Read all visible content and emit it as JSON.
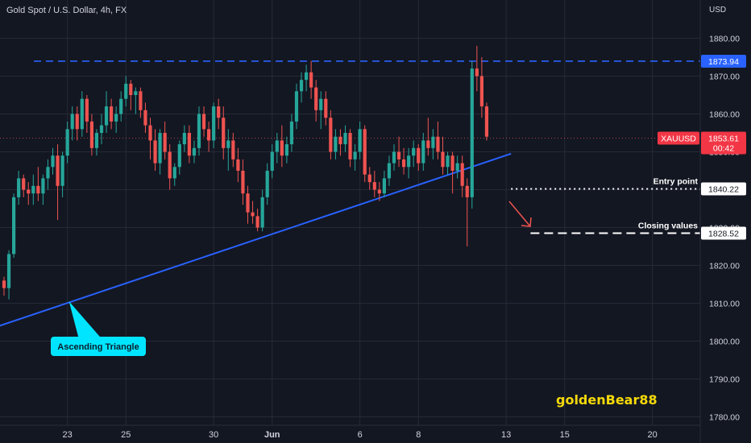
{
  "header": {
    "symbol_title": "Gold Spot / U.S. Dollar, 4h, FX"
  },
  "watermark": "goldenBear88",
  "colors": {
    "background": "#131722",
    "grid": "#252a36",
    "axis_text": "#d1d4dc",
    "up": "#26a69a",
    "down": "#ef5350",
    "trendline": "#2962ff",
    "resistance": "#2962ff",
    "price_tag": "#f23645",
    "annotation_bg": "#00e5ff",
    "watermark": "#f5d90a"
  },
  "chart_data": {
    "type": "candlestick",
    "title": "Gold Spot / U.S. Dollar, 4h, FX",
    "xlabel": "",
    "ylabel": "USD",
    "ylim": [
      1776,
      1889
    ],
    "y_ticks": [
      1780,
      1790,
      1800,
      1810,
      1820,
      1830,
      1840,
      1850,
      1860,
      1870,
      1880
    ],
    "x_ticks": [
      {
        "label": "23",
        "slot": 13
      },
      {
        "label": "25",
        "slot": 25
      },
      {
        "label": "30",
        "slot": 43
      },
      {
        "label": "Jun",
        "slot": 55
      },
      {
        "label": "6",
        "slot": 73
      },
      {
        "label": "8",
        "slot": 85
      },
      {
        "label": "13",
        "slot": 103
      },
      {
        "label": "15",
        "slot": 115
      },
      {
        "label": "20",
        "slot": 133
      }
    ],
    "candles": [
      [
        1816,
        1817,
        1812,
        1814
      ],
      [
        1814,
        1824,
        1811,
        1823
      ],
      [
        1823,
        1839,
        1822,
        1838
      ],
      [
        1838,
        1845,
        1836,
        1843
      ],
      [
        1843,
        1844,
        1838,
        1840
      ],
      [
        1840,
        1842,
        1836,
        1839
      ],
      [
        1839,
        1844,
        1836,
        1841
      ],
      [
        1841,
        1846,
        1837,
        1839
      ],
      [
        1839,
        1844,
        1836,
        1843
      ],
      [
        1843,
        1848,
        1840,
        1846
      ],
      [
        1846,
        1851,
        1844,
        1849
      ],
      [
        1849,
        1852,
        1832,
        1841
      ],
      [
        1841,
        1850,
        1838,
        1849
      ],
      [
        1849,
        1858,
        1847,
        1856
      ],
      [
        1856,
        1862,
        1853,
        1860
      ],
      [
        1860,
        1862,
        1853,
        1856
      ],
      [
        1856,
        1866,
        1854,
        1864
      ],
      [
        1864,
        1865,
        1855,
        1858
      ],
      [
        1858,
        1860,
        1849,
        1851
      ],
      [
        1851,
        1856,
        1849,
        1855
      ],
      [
        1855,
        1860,
        1852,
        1857
      ],
      [
        1857,
        1866,
        1855,
        1862
      ],
      [
        1862,
        1864,
        1856,
        1858
      ],
      [
        1858,
        1862,
        1855,
        1860
      ],
      [
        1860,
        1866,
        1858,
        1864
      ],
      [
        1864,
        1870,
        1862,
        1868
      ],
      [
        1868,
        1869,
        1861,
        1865
      ],
      [
        1865,
        1867,
        1860,
        1866
      ],
      [
        1866,
        1867,
        1859,
        1861
      ],
      [
        1861,
        1863,
        1855,
        1857
      ],
      [
        1857,
        1859,
        1848,
        1853
      ],
      [
        1853,
        1856,
        1845,
        1847
      ],
      [
        1847,
        1856,
        1844,
        1855
      ],
      [
        1855,
        1858,
        1848,
        1850
      ],
      [
        1850,
        1852,
        1840,
        1843
      ],
      [
        1843,
        1847,
        1841,
        1846
      ],
      [
        1846,
        1853,
        1844,
        1852
      ],
      [
        1852,
        1857,
        1850,
        1855
      ],
      [
        1855,
        1857,
        1847,
        1849
      ],
      [
        1849,
        1853,
        1847,
        1851
      ],
      [
        1851,
        1862,
        1849,
        1860
      ],
      [
        1860,
        1862,
        1854,
        1856
      ],
      [
        1856,
        1858,
        1850,
        1853
      ],
      [
        1853,
        1863,
        1851,
        1862
      ],
      [
        1862,
        1864,
        1856,
        1859
      ],
      [
        1859,
        1862,
        1848,
        1851
      ],
      [
        1851,
        1856,
        1845,
        1853
      ],
      [
        1853,
        1855,
        1846,
        1848
      ],
      [
        1848,
        1851,
        1842,
        1845
      ],
      [
        1845,
        1848,
        1836,
        1839
      ],
      [
        1839,
        1841,
        1831,
        1834
      ],
      [
        1834,
        1837,
        1831,
        1833
      ],
      [
        1833,
        1835,
        1829,
        1830
      ],
      [
        1830,
        1840,
        1829,
        1838
      ],
      [
        1838,
        1847,
        1836,
        1845
      ],
      [
        1845,
        1852,
        1843,
        1850
      ],
      [
        1850,
        1855,
        1847,
        1853
      ],
      [
        1853,
        1857,
        1846,
        1849
      ],
      [
        1849,
        1854,
        1847,
        1852
      ],
      [
        1852,
        1860,
        1850,
        1858
      ],
      [
        1858,
        1868,
        1856,
        1866
      ],
      [
        1866,
        1871,
        1863,
        1869
      ],
      [
        1869,
        1873,
        1866,
        1871
      ],
      [
        1871,
        1874,
        1864,
        1867
      ],
      [
        1867,
        1869,
        1858,
        1861
      ],
      [
        1861,
        1866,
        1856,
        1864
      ],
      [
        1864,
        1866,
        1857,
        1859
      ],
      [
        1859,
        1861,
        1848,
        1850
      ],
      [
        1850,
        1856,
        1848,
        1854
      ],
      [
        1854,
        1856,
        1849,
        1852
      ],
      [
        1852,
        1857,
        1850,
        1855
      ],
      [
        1855,
        1856,
        1846,
        1848
      ],
      [
        1848,
        1852,
        1845,
        1850
      ],
      [
        1850,
        1858,
        1848,
        1856
      ],
      [
        1856,
        1857,
        1842,
        1844
      ],
      [
        1844,
        1846,
        1840,
        1842
      ],
      [
        1842,
        1845,
        1838,
        1840
      ],
      [
        1840,
        1842,
        1837,
        1839
      ],
      [
        1839,
        1845,
        1838,
        1843
      ],
      [
        1843,
        1849,
        1841,
        1847
      ],
      [
        1847,
        1852,
        1845,
        1850
      ],
      [
        1850,
        1854,
        1846,
        1848
      ],
      [
        1848,
        1851,
        1844,
        1846
      ],
      [
        1846,
        1851,
        1843,
        1849
      ],
      [
        1849,
        1853,
        1846,
        1851
      ],
      [
        1851,
        1852,
        1845,
        1847
      ],
      [
        1847,
        1855,
        1845,
        1853
      ],
      [
        1853,
        1859,
        1849,
        1851
      ],
      [
        1851,
        1856,
        1848,
        1854
      ],
      [
        1854,
        1858,
        1848,
        1850
      ],
      [
        1850,
        1854,
        1844,
        1846
      ],
      [
        1846,
        1850,
        1844,
        1849
      ],
      [
        1849,
        1850,
        1839,
        1845
      ],
      [
        1845,
        1849,
        1843,
        1847
      ],
      [
        1847,
        1849,
        1838,
        1841
      ],
      [
        1841,
        1843,
        1825,
        1838
      ],
      [
        1838,
        1874,
        1835,
        1872
      ],
      [
        1872,
        1878,
        1866,
        1870
      ],
      [
        1870,
        1875,
        1859,
        1862
      ],
      [
        1862,
        1863,
        1853,
        1854
      ]
    ],
    "last_price": 1853.61,
    "last_price_symbol": "XAUUSD",
    "countdown": "00:42",
    "levels": [
      {
        "name": "resistance",
        "value": 1873.94,
        "label": "1873.94"
      },
      {
        "name": "entry",
        "value": 1840.22,
        "label": "1840.22",
        "text": "Entry point"
      },
      {
        "name": "closing",
        "value": 1828.52,
        "label": "1828.52",
        "text": "Closing values"
      }
    ],
    "trendline": {
      "from": {
        "slot": -1,
        "value": 1804
      },
      "to": {
        "slot": 104,
        "value": 1849.5
      }
    },
    "annotation": {
      "text": "Ascending Triangle",
      "anchor": {
        "slot": 13,
        "value": 1810.5
      }
    }
  }
}
